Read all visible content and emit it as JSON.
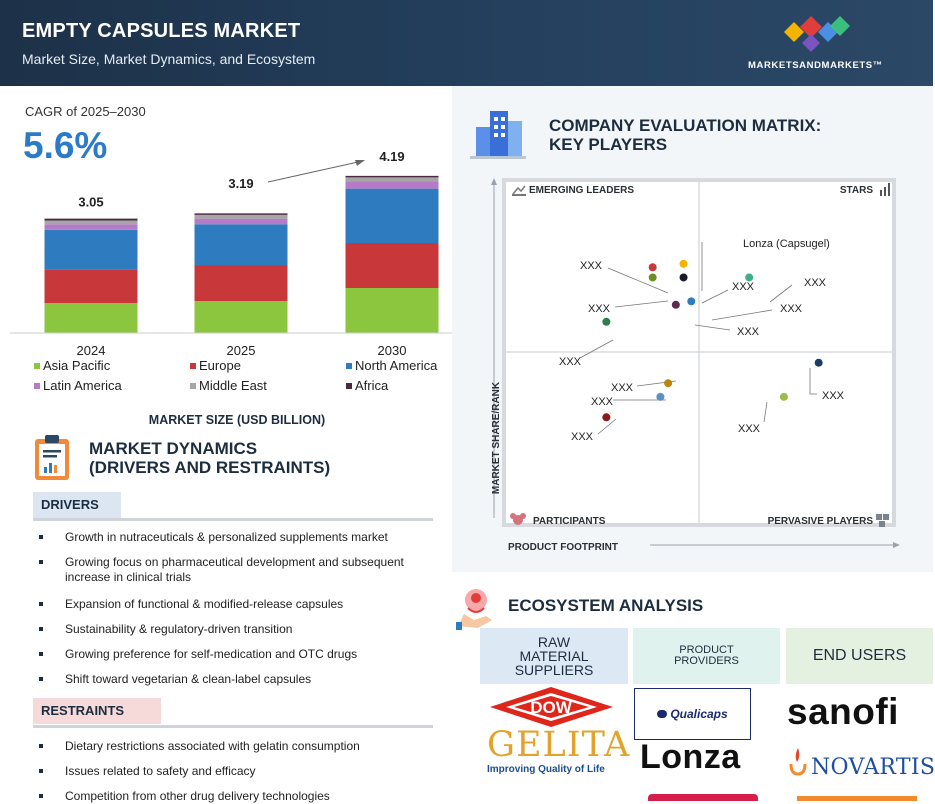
{
  "header": {
    "title": "EMPTY CAPSULES MARKET",
    "subtitle": "Market Size, Market Dynamics, and Ecosystem",
    "brand": "MARKETSANDMARKETS™",
    "colors": {
      "background": "#1d3148",
      "logo": [
        "#f4b400",
        "#e23d3d",
        "#4a8fe2",
        "#3cbf7e"
      ]
    }
  },
  "cagr": {
    "label": "CAGR of 2025–2030",
    "value": "5.6%"
  },
  "chart_data": {
    "type": "bar",
    "stacked": true,
    "title": "MARKET SIZE (USD BILLION)",
    "categories": [
      "2024",
      "2025",
      "2030"
    ],
    "totals": [
      "3.05",
      "3.19",
      "4.19"
    ],
    "total_values": [
      3.05,
      3.19,
      4.19
    ],
    "series": [
      {
        "name": "Asia Pacific",
        "color": "#8cc63f",
        "values": [
          0.8,
          0.85,
          1.2
        ]
      },
      {
        "name": "Europe",
        "color": "#c8373a",
        "values": [
          0.9,
          0.95,
          1.2
        ]
      },
      {
        "name": "North America",
        "color": "#2f7bbf",
        "values": [
          1.05,
          1.1,
          1.45
        ]
      },
      {
        "name": "Latin America",
        "color": "#b57bc8",
        "values": [
          0.15,
          0.15,
          0.2
        ]
      },
      {
        "name": "Middle East",
        "color": "#a6a6a6",
        "values": [
          0.1,
          0.1,
          0.1
        ]
      },
      {
        "name": "Africa",
        "color": "#4a2a3e",
        "values": [
          0.05,
          0.04,
          0.04
        ]
      }
    ],
    "growth_arrow": {
      "from": "2025",
      "to": "2030"
    },
    "legend_position": "bottom"
  },
  "dynamics": {
    "title_line1": "MARKET DYNAMICS",
    "title_line2": "(DRIVERS AND RESTRAINTS)",
    "drivers_label": "DRIVERS",
    "drivers": [
      "Growth in nutraceuticals & personalized supplements market",
      "Growing focus on pharmaceutical development and subsequent increase in clinical trials",
      "Expansion of functional & modified-release capsules",
      "Sustainability & regulatory-driven transition",
      "Growing preference for self-medication and OTC drugs",
      "Shift toward vegetarian & clean-label capsules"
    ],
    "restraints_label": "RESTRAINTS",
    "restraints": [
      "Dietary restrictions associated with gelatin consumption",
      "Issues related to safety and efficacy",
      "Competition from other drug delivery technologies"
    ]
  },
  "matrix": {
    "title_line1": "COMPANY EVALUATION MATRIX:",
    "title_line2": "KEY PLAYERS",
    "quadrants": {
      "top_left": "EMERGING LEADERS",
      "top_right": "STARS",
      "bottom_left": "PARTICIPANTS",
      "bottom_right": "PERVASIVE PLAYERS"
    },
    "y_axis": "MARKET SHARE/RANK",
    "x_axis": "PRODUCT FOOTPRINT",
    "companies": [
      {
        "label": "XXX",
        "x": 0.38,
        "y": 0.75,
        "color": "#c8373a"
      },
      {
        "label": "XXX",
        "x": 0.38,
        "y": 0.72,
        "color": "#6b8e23"
      },
      {
        "label": "Lonza (Capsugel)",
        "x": 0.46,
        "y": 0.76,
        "color": "#f4b400"
      },
      {
        "label": "XXX",
        "x": 0.46,
        "y": 0.72,
        "color": "#1a1a2e"
      },
      {
        "label": "XXX",
        "x": 0.63,
        "y": 0.72,
        "color": "#3cb08a"
      },
      {
        "label": "XXX",
        "x": 0.44,
        "y": 0.64,
        "color": "#5b2a4e"
      },
      {
        "label": "XXX",
        "x": 0.48,
        "y": 0.65,
        "color": "#2f7bbf"
      },
      {
        "label": "XXX",
        "x": 0.26,
        "y": 0.59,
        "color": "#2e7d4f"
      },
      {
        "label": "XXX",
        "x": 0.42,
        "y": 0.41,
        "color": "#b8860b"
      },
      {
        "label": "XXX",
        "x": 0.4,
        "y": 0.37,
        "color": "#5b8fc8"
      },
      {
        "label": "XXX",
        "x": 0.26,
        "y": 0.31,
        "color": "#8b1a1a"
      },
      {
        "label": "XXX",
        "x": 0.81,
        "y": 0.47,
        "color": "#1d3a6e"
      },
      {
        "label": "XXX",
        "x": 0.72,
        "y": 0.37,
        "color": "#9bbb4a"
      }
    ]
  },
  "ecosystem": {
    "title": "ECOSYSTEM ANALYSIS",
    "columns": [
      {
        "line1": "RAW",
        "line2": "MATERIAL",
        "line3": "SUPPLIERS"
      },
      {
        "line1": "PRODUCT",
        "line2": "PROVIDERS"
      },
      {
        "line1": "END USERS"
      }
    ],
    "logos": {
      "dow": "DOW",
      "gelita": "GELITA",
      "gelita_tagline": "Improving Quality of Life",
      "qualicaps": "Qualicaps",
      "lonza": "Lonza",
      "sanofi": "sanofi",
      "novartis": "NOVARTIS"
    }
  }
}
